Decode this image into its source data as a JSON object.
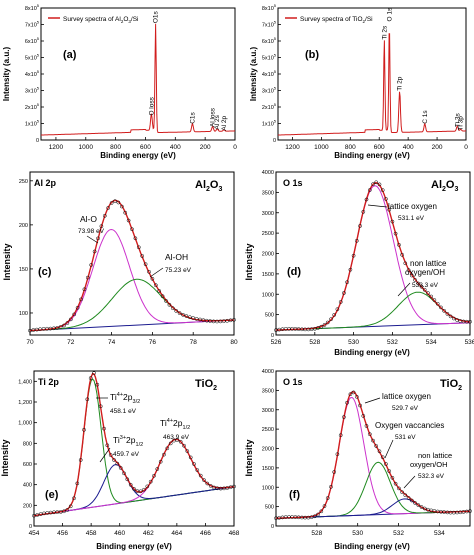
{
  "figure": {
    "panels": [
      {
        "id": "a",
        "label": "(a)"
      },
      {
        "id": "b",
        "label": "(b)"
      },
      {
        "id": "c",
        "label": "(c)"
      },
      {
        "id": "d",
        "label": "(d)"
      },
      {
        "id": "e",
        "label": "(e)"
      },
      {
        "id": "f",
        "label": "(f)"
      }
    ]
  },
  "colors": {
    "red": "#d11d1d",
    "magenta": "#cc33cc",
    "green": "#1f8a1f",
    "navy": "#1b1b8f",
    "black": "#000000"
  },
  "chart_data": [
    {
      "id": "a",
      "type": "line",
      "label": "(a)",
      "legend": "Survey spectra of Al2O3/Si",
      "xlabel": "Binding energy (eV)",
      "ylabel": "Intensity (a.u.)",
      "xlim": [
        1300,
        0
      ],
      "ylim": [
        0,
        800000
      ],
      "xticks": [
        "1200",
        "1000",
        "800",
        "600",
        "400",
        "200",
        "0"
      ],
      "yticks": [
        "0",
        "1x10^5",
        "2x10^5",
        "3x10^5",
        "4x10^5",
        "5x10^5",
        "6x10^5",
        "7x10^5",
        "8x10^5"
      ],
      "peaks": [
        {
          "x": 532,
          "y": 690000,
          "name": "O1s"
        },
        {
          "x": 560,
          "y": 130000,
          "name": "O loss"
        },
        {
          "x": 285,
          "y": 80000,
          "name": "C1s"
        },
        {
          "x": 150,
          "y": 60000,
          "name": "Al loss"
        },
        {
          "x": 119,
          "y": 45000,
          "name": "Al 2s"
        },
        {
          "x": 74,
          "y": 38000,
          "name": "Al 2p"
        }
      ]
    },
    {
      "id": "b",
      "type": "line",
      "label": "(b)",
      "legend": "Survey spectra of TiO2/Si",
      "xlabel": "Binding energy (eV)",
      "ylabel": "Intensity (a.u.)",
      "xlim": [
        1300,
        0
      ],
      "ylim": [
        0,
        800000
      ],
      "xticks": [
        "1200",
        "1000",
        "800",
        "600",
        "400",
        "200",
        "0"
      ],
      "yticks": [
        "0",
        "1x10^5",
        "2x10^5",
        "3x10^5",
        "4x10^5",
        "5x10^5",
        "6x10^5",
        "7x10^5",
        "8x10^5"
      ],
      "peaks": [
        {
          "x": 530,
          "y": 700000,
          "name": "O 1s"
        },
        {
          "x": 565,
          "y": 590000,
          "name": "Ti 2s"
        },
        {
          "x": 459,
          "y": 280000,
          "name": "Ti 2p"
        },
        {
          "x": 285,
          "y": 80000,
          "name": "C 1s"
        },
        {
          "x": 60,
          "y": 60000,
          "name": "Ti 3s"
        },
        {
          "x": 37,
          "y": 40000,
          "name": "Ti 3p"
        }
      ]
    },
    {
      "id": "c",
      "type": "scatter",
      "label": "(c)",
      "title_left": "Al 2p",
      "title_right": "Al2O3",
      "xlabel": "",
      "ylabel": "Intensity",
      "xlim": [
        70,
        80
      ],
      "ylim": [
        75,
        260
      ],
      "xticks": [
        "70",
        "72",
        "74",
        "76",
        "78",
        "80"
      ],
      "yticks": [
        "100",
        "150",
        "200",
        "250"
      ],
      "annotations": [
        {
          "name": "Al-O",
          "value": "73.98 eV"
        },
        {
          "name": "Al-OH",
          "value": "75.23 eV"
        }
      ],
      "components": [
        {
          "name": "Al-O",
          "center": 73.98,
          "height": 110,
          "sigma": 0.9
        },
        {
          "name": "Al-OH",
          "center": 75.23,
          "height": 52,
          "sigma": 1.2
        }
      ],
      "background": [
        [
          70,
          80
        ],
        [
          80,
          92
        ]
      ]
    },
    {
      "id": "d",
      "type": "scatter",
      "label": "(d)",
      "title_left": "O 1s",
      "title_right": "Al2O3",
      "xlabel": "Binding energy (eV)",
      "ylabel": "Intensity",
      "xlim": [
        526,
        536
      ],
      "ylim": [
        0,
        4000
      ],
      "xticks": [
        "526",
        "528",
        "530",
        "532",
        "534",
        "536"
      ],
      "yticks": [
        "0",
        "500",
        "1000",
        "1500",
        "2000",
        "2500",
        "3000",
        "3500",
        "4000"
      ],
      "annotations": [
        {
          "name": "lattice oxygen",
          "value": "531.1 eV"
        },
        {
          "name": "non lattice oxygen/OH",
          "value": "533.3 eV"
        }
      ],
      "components": [
        {
          "name": "lattice oxygen",
          "center": 531.1,
          "height": 3450,
          "sigma": 0.95
        },
        {
          "name": "non lattice oxygen/OH",
          "center": 533.3,
          "height": 800,
          "sigma": 1.0
        }
      ],
      "background": [
        [
          526,
          120
        ],
        [
          536,
          300
        ]
      ]
    },
    {
      "id": "e",
      "type": "scatter",
      "label": "(e)",
      "title_left": "Ti 2p",
      "title_right": "TiO2",
      "xlabel": "Binding energy (eV)",
      "ylabel": "Intensity",
      "xlim": [
        454,
        468
      ],
      "ylim": [
        0,
        1500
      ],
      "xticks": [
        "454",
        "456",
        "458",
        "460",
        "462",
        "464",
        "466",
        "468"
      ],
      "yticks": [
        "0",
        "200",
        "400",
        "600",
        "800",
        "1,000",
        "1,200",
        "1,400"
      ],
      "annotations": [
        {
          "name": "Ti4+2p3/2",
          "value": "458.1 eV"
        },
        {
          "name": "Ti3+2p1/2",
          "value": "459.7 eV"
        },
        {
          "name": "Ti4+2p1/2",
          "value": "463.9 eV"
        }
      ],
      "components": [
        {
          "name": "Ti4+2p3/2",
          "center": 458.1,
          "height": 1240,
          "sigma": 0.6
        },
        {
          "name": "Ti3+2p1/2",
          "center": 459.7,
          "height": 380,
          "sigma": 0.8
        },
        {
          "name": "Ti4+2p1/2",
          "center": 463.9,
          "height": 540,
          "sigma": 1.1
        }
      ],
      "background": [
        [
          454,
          100
        ],
        [
          468,
          380
        ]
      ]
    },
    {
      "id": "f",
      "type": "scatter",
      "label": "(f)",
      "title_left": "O 1s",
      "title_right": "TiO2",
      "xlabel": "Binding energy (eV)",
      "ylabel": "Intensity",
      "xlim": [
        526,
        535.5
      ],
      "ylim": [
        0,
        4000
      ],
      "xticks": [
        "528",
        "530",
        "532",
        "534"
      ],
      "yticks": [
        "0",
        "500",
        "1000",
        "1500",
        "2000",
        "2500",
        "3000",
        "3500",
        "4000"
      ],
      "annotations": [
        {
          "name": "lattice oxygen",
          "value": "529.7 eV"
        },
        {
          "name": "Oxygen vaccancies",
          "value": "531 eV"
        },
        {
          "name": "non lattice oxygen/OH",
          "value": "532.3 eV"
        }
      ],
      "components": [
        {
          "name": "lattice oxygen",
          "center": 529.7,
          "height": 3050,
          "sigma": 0.6
        },
        {
          "name": "Oxygen vaccancies",
          "center": 531.0,
          "height": 1350,
          "sigma": 0.6
        },
        {
          "name": "non lattice oxygen/OH",
          "center": 532.3,
          "height": 380,
          "sigma": 0.6
        }
      ],
      "background": [
        [
          526,
          200
        ],
        [
          535.5,
          380
        ]
      ]
    }
  ]
}
